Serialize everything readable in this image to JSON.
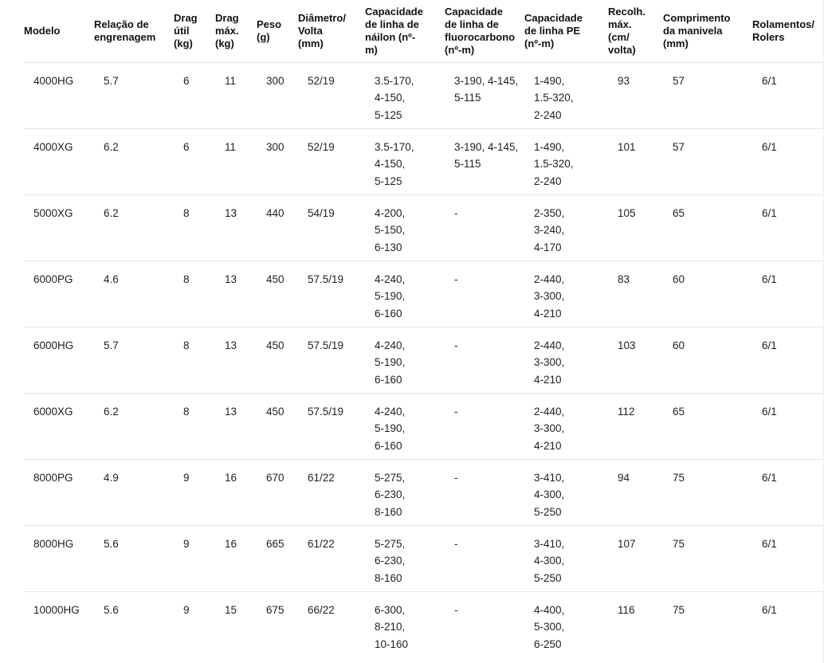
{
  "chart_data": {
    "type": "table",
    "columns": [
      "Modelo",
      "Relação de engrenagem",
      "Drag útil (kg)",
      "Drag máx. (kg)",
      "Peso (g)",
      "Diâmetro/Volta (mm)",
      "Capacidade de linha de náilon (nº-m)",
      "Capacidade de linha de fluorocarbono (nº-m)",
      "Capacidade de linha PE (nº-m)",
      "Recolh. máx. (cm/volta)",
      "Comprimento da manivela (mm)",
      "Rolamentos/Rolers"
    ],
    "rows": [
      [
        "4000HG",
        "5.7",
        "6",
        "11",
        "300",
        "52/19",
        "3.5-170,\n4-150,\n5-125",
        "3-190, 4-145,\n5-115",
        "1-490,\n1.5-320,\n2-240",
        "93",
        "57",
        "6/1"
      ],
      [
        "4000XG",
        "6.2",
        "6",
        "11",
        "300",
        "52/19",
        "3.5-170,\n4-150,\n5-125",
        "3-190, 4-145,\n5-115",
        "1-490,\n1.5-320,\n2-240",
        "101",
        "57",
        "6/1"
      ],
      [
        "5000XG",
        "6.2",
        "8",
        "13",
        "440",
        "54/19",
        "4-200,\n5-150,\n6-130",
        "-",
        "2-350,\n3-240,\n4-170",
        "105",
        "65",
        "6/1"
      ],
      [
        "6000PG",
        "4.6",
        "8",
        "13",
        "450",
        "57.5/19",
        "4-240,\n5-190,\n6-160",
        "-",
        "2-440,\n3-300,\n4-210",
        "83",
        "60",
        "6/1"
      ],
      [
        "6000HG",
        "5.7",
        "8",
        "13",
        "450",
        "57.5/19",
        "4-240,\n5-190,\n6-160",
        "-",
        "2-440,\n3-300,\n4-210",
        "103",
        "60",
        "6/1"
      ],
      [
        "6000XG",
        "6.2",
        "8",
        "13",
        "450",
        "57.5/19",
        "4-240,\n5-190,\n6-160",
        "-",
        "2-440,\n3-300,\n4-210",
        "112",
        "65",
        "6/1"
      ],
      [
        "8000PG",
        "4.9",
        "9",
        "16",
        "670",
        "61/22",
        "5-275,\n6-230,\n8-160",
        "-",
        "3-410,\n4-300,\n5-250",
        "94",
        "75",
        "6/1"
      ],
      [
        "8000HG",
        "5.6",
        "9",
        "16",
        "665",
        "61/22",
        "5-275,\n6-230,\n8-160",
        "-",
        "3-410,\n4-300,\n5-250",
        "107",
        "75",
        "6/1"
      ],
      [
        "10000HG",
        "5.6",
        "9",
        "15",
        "675",
        "66/22",
        "6-300,\n8-210,\n10-160",
        "-",
        "4-400,\n5-300,\n6-250",
        "116",
        "75",
        "6/1"
      ]
    ],
    "title": "",
    "legend": "none",
    "grid": "horizontal-row-dividers"
  },
  "display": {
    "column_headers": [
      "Modelo",
      "Relação de\nengrenagem",
      "Drag\nútil\n(kg)",
      "Drag\nmáx.\n(kg)",
      "Peso\n(g)",
      "Diâmetro/\nVolta\n(mm)",
      "Capacidade\nde linha de\nnáilon (nº-\nm)",
      "Capacidade\nde linha de\nfluorocarbono\n(nº-m)",
      "Capacidade\nde linha PE\n(nº-m)",
      "Recolh.\nmáx.\n(cm/\nvolta)",
      "Comprimento\nda manivela\n(mm)",
      "Rolamentos/\nRolers"
    ]
  },
  "colors": {
    "background": "#ffffff",
    "header_text": "#111111",
    "body_text": "#1f1f1f",
    "divider": "#e5e5e5"
  }
}
